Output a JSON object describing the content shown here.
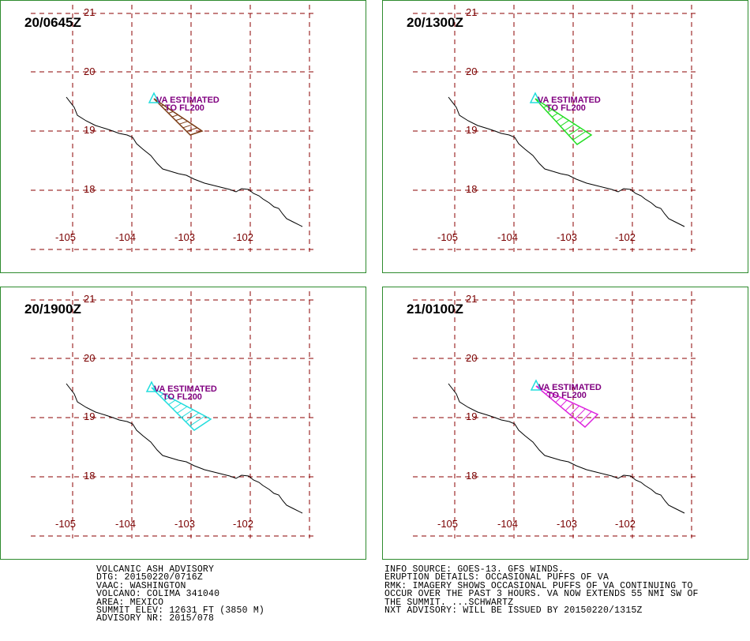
{
  "panels": [
    {
      "time": "20/0645Z",
      "plume_color": "#7a3b14"
    },
    {
      "time": "20/1300Z",
      "plume_color": "#22dd22"
    },
    {
      "time": "20/1900Z",
      "plume_color": "#22dddd"
    },
    {
      "time": "21/0100Z",
      "plume_color": "#dd22dd"
    }
  ],
  "map": {
    "lon_labels": [
      "-105",
      "-104",
      "-103",
      "-102"
    ],
    "lat_labels": [
      "21",
      "20",
      "19",
      "18"
    ],
    "annotation_line1": "VA ESTIMATED",
    "annotation_line2": "TO FL200",
    "grid_color": "#8b0000",
    "label_color": "#7a0000",
    "annotation_color": "#800080",
    "volcano_marker_color": "#22dddd",
    "coastline_color": "#000000"
  },
  "advisory_left": [
    "VOLCANIC ASH ADVISORY",
    "DTG: 20150220/0716Z",
    "VAAC: WASHINGTON",
    "VOLCANO: COLIMA 341040",
    "AREA: MEXICO",
    "SUMMIT ELEV: 12631 FT (3850 M)",
    "ADVISORY NR: 2015/078"
  ],
  "advisory_right": [
    "INFO SOURCE: GOES-13. GFS WINDS.",
    "ERUPTION DETAILS: OCCASIONAL PUFFS OF VA",
    "RMK: IMAGERY SHOWS OCCASIONAL PUFFS OF VA CONTINUING TO",
    "OCCUR OVER THE PAST 3 HOURS. VA NOW EXTENDS 55 NMI SW OF",
    "THE SUMMIT. ...SCHWARTZ",
    "NXT ADVISORY: WILL BE ISSUED BY 20150220/1315Z"
  ]
}
